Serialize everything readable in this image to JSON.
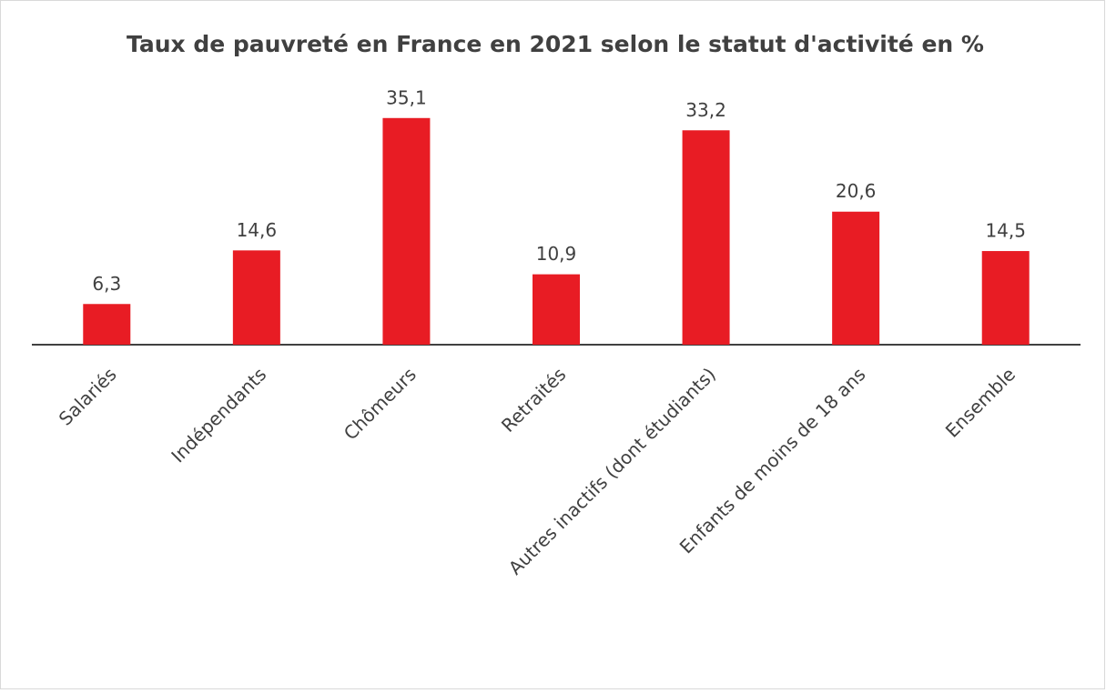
{
  "chart_data": {
    "type": "bar",
    "title": "Taux de pauvreté en France en 2021 selon le statut d'activité en %",
    "categories": [
      "Salariés",
      "Indépendants",
      "Chômeurs",
      "Retraités",
      "Autres inactifs (dont étudiants)",
      "Enfants de moins de 18 ans",
      "Ensemble"
    ],
    "values": [
      6.3,
      14.6,
      35.1,
      10.9,
      33.2,
      20.6,
      14.5
    ],
    "value_labels": [
      "6,3",
      "14,6",
      "35,1",
      "10,9",
      "33,2",
      "20,6",
      "14,5"
    ],
    "color": "#e81c24",
    "ylim": [
      0,
      40
    ]
  }
}
